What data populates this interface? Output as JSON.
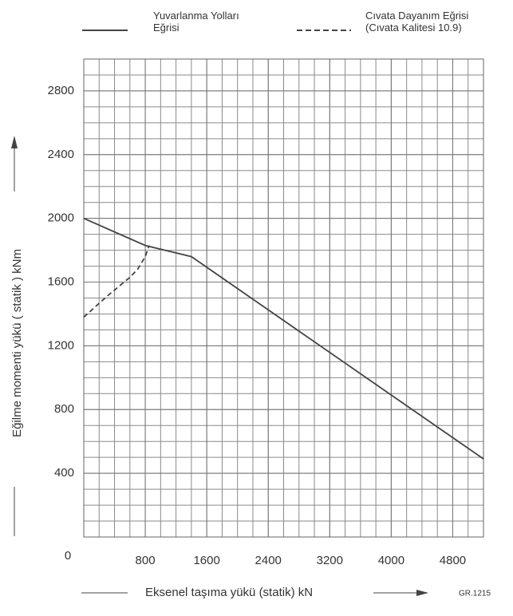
{
  "chart_data": {
    "type": "line",
    "x_label": "Eksenel taşıma yükü  (statik) kN",
    "y_label": "Eğilme momenti yükü  ( statik )  kNm",
    "code": "GR.1215",
    "xlim": [
      0,
      5200
    ],
    "xticks": [
      0,
      800,
      1600,
      2400,
      3200,
      4000,
      4800
    ],
    "ylim": [
      0,
      3000
    ],
    "yticks": [
      400,
      800,
      1200,
      1600,
      2000,
      2400,
      2800
    ],
    "grid": true,
    "series": [
      {
        "name": "Yuvarlanma Yolları Eğrisi",
        "color": "#444444",
        "dash": false,
        "x": [
          0,
          800,
          1400,
          5200
        ],
        "values": [
          2000,
          1830,
          1760,
          490
        ]
      },
      {
        "name": "Cıvata Dayanım Eğrisi (Cıvata Kalitesi 10.9)",
        "color": "#444444",
        "dash": true,
        "x": [
          0,
          300,
          600,
          700,
          800,
          850
        ],
        "values": [
          1380,
          1510,
          1630,
          1680,
          1760,
          1830
        ]
      }
    ]
  }
}
